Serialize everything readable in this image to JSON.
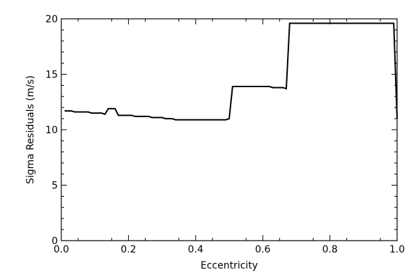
{
  "chart_data": {
    "type": "line",
    "title": "",
    "xlabel": "Eccentricity",
    "ylabel": "Sigma Residuals (m/s)",
    "xlim": [
      0.0,
      1.0
    ],
    "ylim": [
      0,
      20
    ],
    "grid": false,
    "legend": "none",
    "x_ticks": [
      0.0,
      0.2,
      0.4,
      0.6,
      0.8,
      1.0
    ],
    "x_tick_labels": [
      "0.0",
      "0.2",
      "0.4",
      "0.6",
      "0.8",
      "1.0"
    ],
    "y_ticks": [
      0,
      5,
      10,
      15,
      20
    ],
    "y_tick_labels": [
      "0",
      "5",
      "10",
      "15",
      "20"
    ],
    "line_color": "#000000",
    "series": [
      {
        "x": [
          0.01,
          0.03,
          0.04,
          0.08,
          0.09,
          0.12,
          0.13,
          0.14,
          0.15,
          0.16,
          0.17,
          0.21,
          0.22,
          0.26,
          0.27,
          0.3,
          0.31,
          0.33,
          0.34,
          0.49,
          0.5,
          0.51,
          0.62,
          0.63,
          0.66,
          0.67,
          0.68,
          0.99,
          1.0
        ],
        "y": [
          11.7,
          11.7,
          11.6,
          11.6,
          11.5,
          11.5,
          11.4,
          11.9,
          11.9,
          11.9,
          11.3,
          11.3,
          11.2,
          11.2,
          11.1,
          11.1,
          11.0,
          11.0,
          10.9,
          10.9,
          11.0,
          13.9,
          13.9,
          13.8,
          13.8,
          13.7,
          19.6,
          19.6,
          11.0
        ]
      }
    ]
  }
}
